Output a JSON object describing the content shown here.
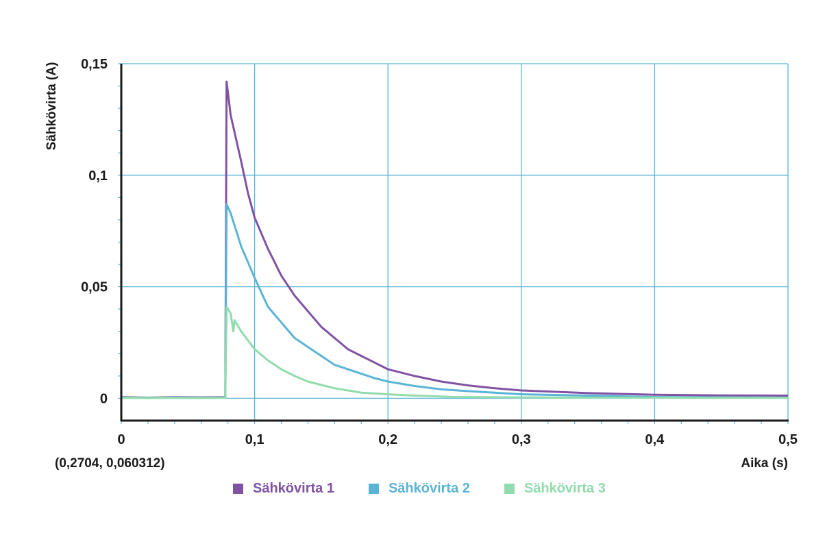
{
  "chart_data": {
    "type": "line",
    "ylabel": "Sähkövirta (A)",
    "xlabel": "Aika (s)",
    "xlim": [
      0,
      0.5
    ],
    "ylim": [
      -0.01,
      0.15
    ],
    "x_ticks": [
      0,
      0.1,
      0.2,
      0.3,
      0.4,
      0.5
    ],
    "x_tick_labels": [
      "0",
      "0,1",
      "0,2",
      "0,3",
      "0,4",
      "0,5"
    ],
    "y_ticks": [
      0,
      0.05,
      0.1,
      0.15
    ],
    "y_tick_labels": [
      "0",
      "0,05",
      "0,1",
      "0,15"
    ],
    "coordinate_readout": "(0,2704, 0,060312)",
    "grid": true,
    "legend_position": "bottom",
    "series": [
      {
        "name": "Sähkövirta 1",
        "color": "#8052a4",
        "points": [
          [
            0,
            0.0005
          ],
          [
            0.02,
            0.0003
          ],
          [
            0.04,
            0.0005
          ],
          [
            0.06,
            0.0004
          ],
          [
            0.078,
            0.0005
          ],
          [
            0.079,
            0.142
          ],
          [
            0.082,
            0.127
          ],
          [
            0.09,
            0.106
          ],
          [
            0.095,
            0.092
          ],
          [
            0.1,
            0.081
          ],
          [
            0.11,
            0.067
          ],
          [
            0.12,
            0.055
          ],
          [
            0.13,
            0.046
          ],
          [
            0.14,
            0.039
          ],
          [
            0.15,
            0.032
          ],
          [
            0.16,
            0.027
          ],
          [
            0.17,
            0.022
          ],
          [
            0.18,
            0.019
          ],
          [
            0.19,
            0.016
          ],
          [
            0.2,
            0.013
          ],
          [
            0.22,
            0.01
          ],
          [
            0.24,
            0.0075
          ],
          [
            0.26,
            0.0058
          ],
          [
            0.28,
            0.0045
          ],
          [
            0.3,
            0.0035
          ],
          [
            0.35,
            0.0023
          ],
          [
            0.4,
            0.0016
          ],
          [
            0.45,
            0.0013
          ],
          [
            0.5,
            0.0012
          ]
        ]
      },
      {
        "name": "Sähkövirta 2",
        "color": "#5ab4d6",
        "points": [
          [
            0,
            0.0003
          ],
          [
            0.02,
            0.0002
          ],
          [
            0.04,
            0.0003
          ],
          [
            0.06,
            0.0002
          ],
          [
            0.078,
            0.0003
          ],
          [
            0.079,
            0.087
          ],
          [
            0.082,
            0.083
          ],
          [
            0.09,
            0.068
          ],
          [
            0.095,
            0.061
          ],
          [
            0.1,
            0.054
          ],
          [
            0.11,
            0.041
          ],
          [
            0.12,
            0.034
          ],
          [
            0.13,
            0.027
          ],
          [
            0.14,
            0.023
          ],
          [
            0.15,
            0.019
          ],
          [
            0.16,
            0.015
          ],
          [
            0.17,
            0.013
          ],
          [
            0.18,
            0.011
          ],
          [
            0.19,
            0.009
          ],
          [
            0.2,
            0.0075
          ],
          [
            0.22,
            0.0055
          ],
          [
            0.24,
            0.004
          ],
          [
            0.26,
            0.0032
          ],
          [
            0.28,
            0.0025
          ],
          [
            0.3,
            0.0018
          ],
          [
            0.35,
            0.0012
          ],
          [
            0.4,
            0.0006
          ],
          [
            0.45,
            0.0004
          ],
          [
            0.5,
            0.0003
          ]
        ]
      },
      {
        "name": "Sähkövirta 3",
        "color": "#90dcac",
        "points": [
          [
            0,
            0.0002
          ],
          [
            0.02,
            0.0001
          ],
          [
            0.04,
            0.0002
          ],
          [
            0.06,
            0.0001
          ],
          [
            0.078,
            0.0002
          ],
          [
            0.079,
            0.041
          ],
          [
            0.082,
            0.038
          ],
          [
            0.084,
            0.03
          ],
          [
            0.085,
            0.035
          ],
          [
            0.09,
            0.03
          ],
          [
            0.1,
            0.022
          ],
          [
            0.11,
            0.017
          ],
          [
            0.12,
            0.013
          ],
          [
            0.13,
            0.01
          ],
          [
            0.14,
            0.0075
          ],
          [
            0.15,
            0.006
          ],
          [
            0.16,
            0.0045
          ],
          [
            0.17,
            0.0035
          ],
          [
            0.18,
            0.0025
          ],
          [
            0.2,
            0.0018
          ],
          [
            0.22,
            0.0012
          ],
          [
            0.25,
            0.0006
          ],
          [
            0.3,
            0.0004
          ],
          [
            0.35,
            0.0003
          ],
          [
            0.4,
            0.0003
          ],
          [
            0.45,
            0.0002
          ],
          [
            0.5,
            0.0002
          ]
        ]
      }
    ]
  }
}
